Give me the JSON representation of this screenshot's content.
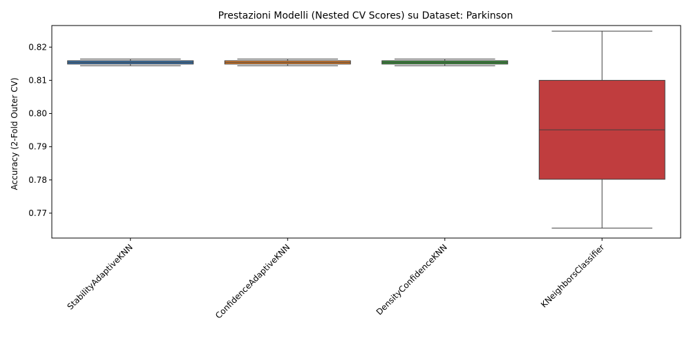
{
  "chart_data": {
    "type": "box",
    "title": "Prestazioni Modelli (Nested CV Scores) su Dataset: Parkinson",
    "xlabel": "",
    "ylabel": "Accuracy (2-Fold Outer CV)",
    "ylim": [
      0.7625,
      0.8265
    ],
    "yticks": [
      0.77,
      0.78,
      0.79,
      0.8,
      0.81,
      0.82
    ],
    "ytick_labels": [
      "0.77",
      "0.78",
      "0.79",
      "0.80",
      "0.81",
      "0.82"
    ],
    "grid": false,
    "legend": "none",
    "categories": [
      "StabilityAdaptiveKNN",
      "ConfidenceAdaptiveKNN",
      "DensityConfidenceKNN",
      "KNeighborsClassifier"
    ],
    "boxes": [
      {
        "category": "StabilityAdaptiveKNN",
        "color": "#3a75af",
        "whisker_low": 0.8144,
        "q1": 0.8149,
        "median": 0.8154,
        "q3": 0.8159,
        "whisker_high": 0.8164
      },
      {
        "category": "ConfidenceAdaptiveKNN",
        "color": "#e1812c",
        "whisker_low": 0.8144,
        "q1": 0.8149,
        "median": 0.8154,
        "q3": 0.8159,
        "whisker_high": 0.8164
      },
      {
        "category": "DensityConfidenceKNN",
        "color": "#3a923a",
        "whisker_low": 0.8144,
        "q1": 0.8149,
        "median": 0.8154,
        "q3": 0.8159,
        "whisker_high": 0.8164
      },
      {
        "category": "KNeighborsClassifier",
        "color": "#c03d3e",
        "whisker_low": 0.7655,
        "q1": 0.7802,
        "median": 0.7951,
        "q3": 0.81,
        "whisker_high": 0.8248
      }
    ]
  }
}
